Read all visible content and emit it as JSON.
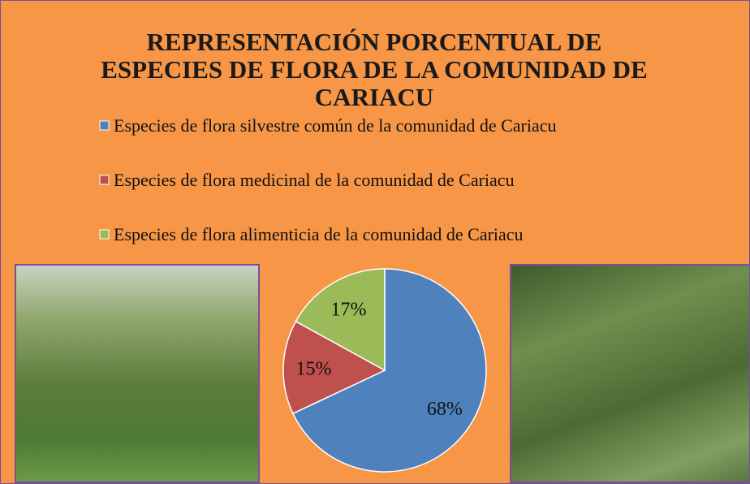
{
  "chart_data": {
    "type": "pie",
    "title": "REPRESENTACIÓN PORCENTUAL DE ESPECIES DE FLORA DE LA COMUNIDAD DE CARIACU",
    "categories": [
      "Especies de flora silvestre común de la comunidad de Cariacu",
      "Especies de flora medicinal de la comunidad de Cariacu",
      "Especies de flora alimenticia de la comunidad de Cariacu"
    ],
    "values": [
      68,
      15,
      17
    ],
    "value_labels": [
      "68%",
      "15%",
      "17%"
    ],
    "colors": [
      "#4f81bd",
      "#c0504d",
      "#9bbb59"
    ]
  }
}
